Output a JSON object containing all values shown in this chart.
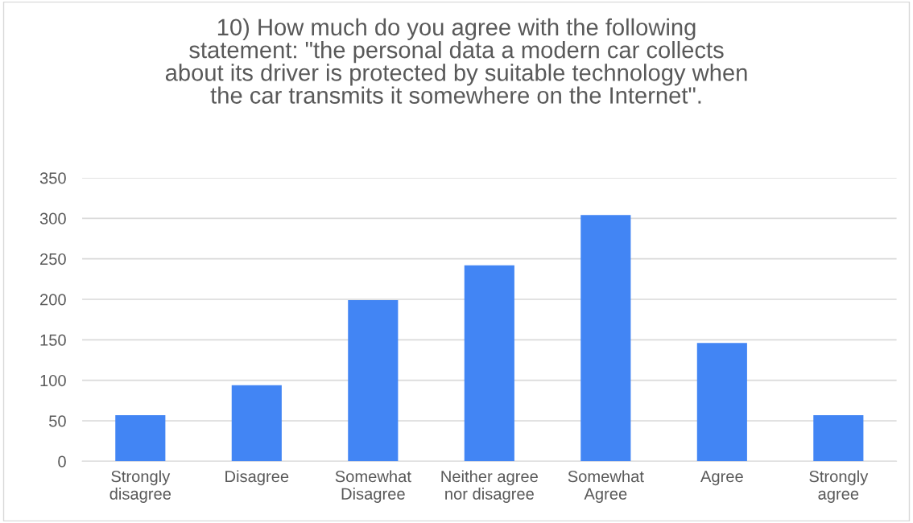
{
  "chart_data": {
    "type": "bar",
    "title": "10) How much do you agree with the following\nstatement: \"the personal data a modern car collects\nabout its driver is protected by suitable technology when\nthe car transmits it somewhere on the Internet\".",
    "categories": [
      "Strongly\ndisagree",
      "Disagree",
      "Somewhat\nDisagree",
      "Neither agree\nnor disagree",
      "Somewhat\nAgree",
      "Agree",
      "Strongly\nagree"
    ],
    "values": [
      57,
      94,
      199,
      242,
      304,
      146,
      57
    ],
    "color": "#4285f4",
    "ylim": [
      0,
      350
    ],
    "yticks": [
      0,
      50,
      100,
      150,
      200,
      250,
      300,
      350
    ],
    "grid": "y"
  }
}
